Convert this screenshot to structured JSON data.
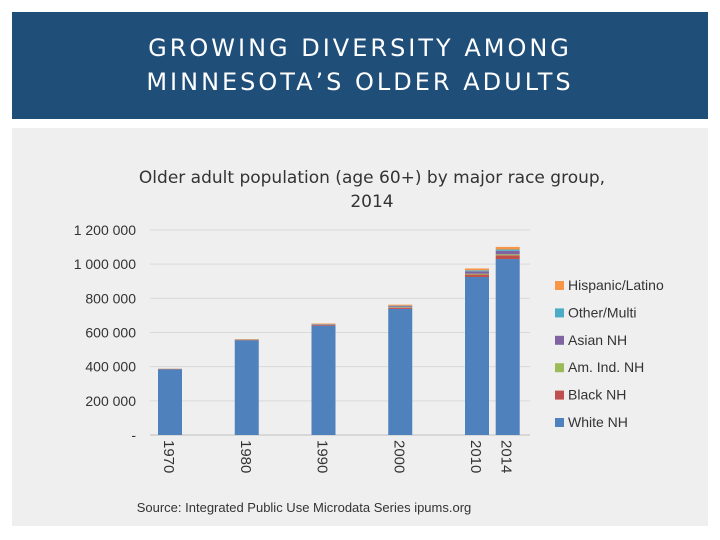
{
  "slide": {
    "title_line1": "GROWING DIVERSITY AMONG",
    "title_line2": "MINNESOTA’S OLDER ADULTS",
    "source": "Source: Integrated Public Use Microdata Series ipums.org"
  },
  "colors": {
    "header_bg": "#1f4e79",
    "panel_bg": "#efefef",
    "white_nh": "#4f81bd",
    "black_nh": "#c0504d",
    "am_ind_nh": "#9bbb59",
    "asian_nh": "#8064a2",
    "other_multi": "#4bacc6",
    "hispanic_latino": "#f79646"
  },
  "chart_data": {
    "type": "bar",
    "stacked": true,
    "title_line1": "Older adult population (age 60+) by major race group,",
    "title_line2": "2014",
    "categories": [
      "1970",
      "1980",
      "1990",
      "2000",
      "2010",
      "2014"
    ],
    "y_tick_labels": [
      "-",
      "200 000",
      "400 000",
      "600 000",
      "800 000",
      "1 000 000",
      "1 200 000"
    ],
    "y_tick_values": [
      0,
      200000,
      400000,
      600000,
      800000,
      1000000,
      1200000
    ],
    "ylim": [
      0,
      1200000
    ],
    "grid": true,
    "legend_position": "right",
    "series": [
      {
        "name": "White NH",
        "color_key": "white_nh",
        "values": [
          385000,
          555000,
          640000,
          738000,
          925000,
          1030000
        ]
      },
      {
        "name": "Black NH",
        "color_key": "black_nh",
        "values": [
          1500,
          2500,
          4000,
          7000,
          14000,
          22000
        ]
      },
      {
        "name": "Am. Ind. NH",
        "color_key": "am_ind_nh",
        "values": [
          800,
          1200,
          2000,
          3000,
          5000,
          6000
        ]
      },
      {
        "name": "Asian NH",
        "color_key": "asian_nh",
        "values": [
          500,
          1000,
          3000,
          6000,
          14000,
          20000
        ]
      },
      {
        "name": "Other/Multi",
        "color_key": "other_multi",
        "values": [
          0,
          0,
          500,
          3000,
          6000,
          8000
        ]
      },
      {
        "name": "Hispanic/Latino",
        "color_key": "hispanic_latino",
        "values": [
          1000,
          2000,
          3000,
          6000,
          11000,
          15000
        ]
      }
    ],
    "legend_order": [
      "Hispanic/Latino",
      "Other/Multi",
      "Asian NH",
      "Am. Ind. NH",
      "Black NH",
      "White NH"
    ]
  }
}
